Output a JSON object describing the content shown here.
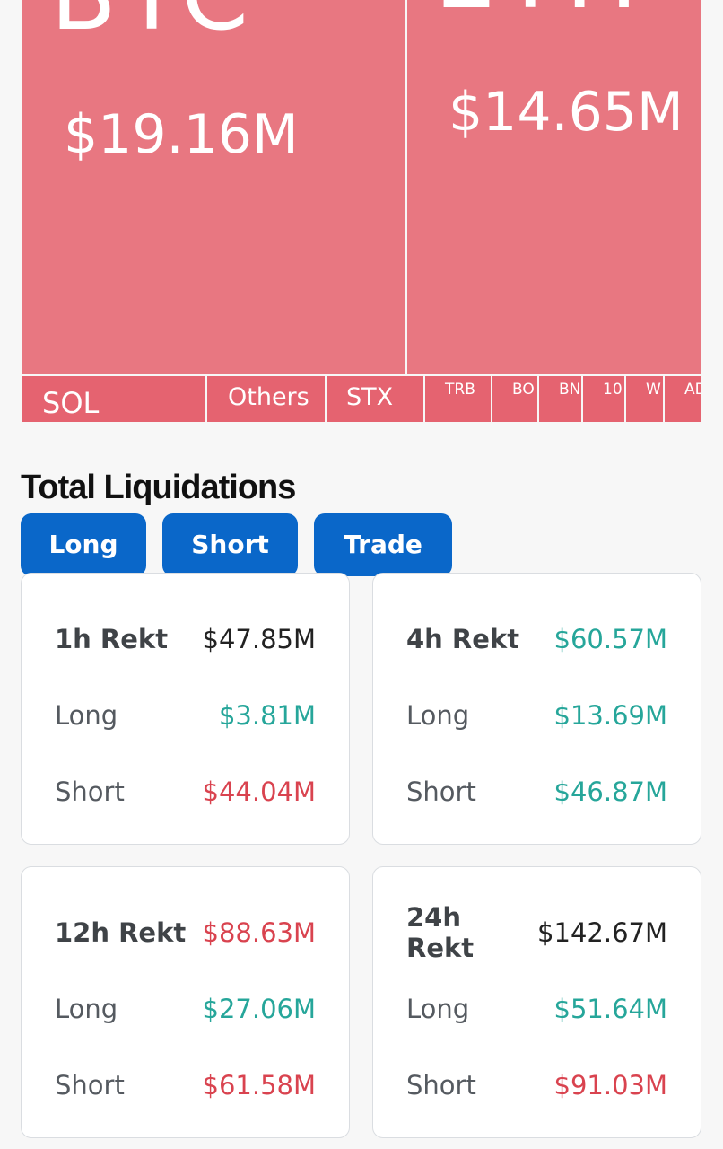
{
  "treemap": {
    "tiles": [
      {
        "symbol": "BTC",
        "value": "$19.16M"
      },
      {
        "symbol": "ETH",
        "value": "$14.65M"
      },
      {
        "symbol": "SOL"
      },
      {
        "symbol": "Others"
      },
      {
        "symbol": "STX"
      },
      {
        "symbol": "TRB"
      },
      {
        "symbol": "BO"
      },
      {
        "symbol": "BN"
      },
      {
        "symbol": "10"
      },
      {
        "symbol": "W"
      },
      {
        "symbol": "AD"
      }
    ]
  },
  "section_title": "Total Liquidations",
  "tabs": [
    {
      "label": "Long"
    },
    {
      "label": "Short"
    },
    {
      "label": "Trade"
    }
  ],
  "cards": [
    {
      "period": "1h Rekt",
      "total": "$47.85M",
      "total_color": "neutral",
      "long_label": "Long",
      "long": "$3.81M",
      "long_color": "green",
      "short_label": "Short",
      "short": "$44.04M",
      "short_color": "red"
    },
    {
      "period": "4h Rekt",
      "total": "$60.57M",
      "total_color": "green",
      "long_label": "Long",
      "long": "$13.69M",
      "long_color": "green",
      "short_label": "Short",
      "short": "$46.87M",
      "short_color": "green"
    },
    {
      "period": "12h Rekt",
      "total": "$88.63M",
      "total_color": "red",
      "long_label": "Long",
      "long": "$27.06M",
      "long_color": "green",
      "short_label": "Short",
      "short": "$61.58M",
      "short_color": "red"
    },
    {
      "period": "24h Rekt",
      "total": "$142.67M",
      "total_color": "neutral",
      "long_label": "Long",
      "long": "$51.64M",
      "long_color": "green",
      "short_label": "Short",
      "short": "$91.03M",
      "short_color": "red"
    }
  ],
  "colors": {
    "tile": "#e87781",
    "tile_bottom": "#e56370",
    "tab": "#0a67c9",
    "green": "#26a69a",
    "red": "#d9434f"
  }
}
